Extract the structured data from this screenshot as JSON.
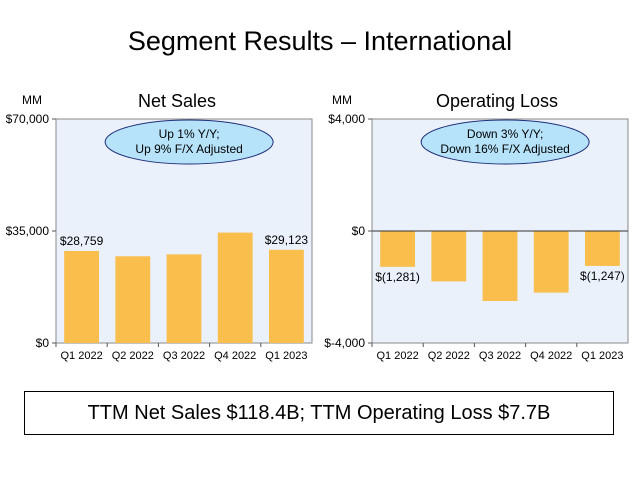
{
  "page": {
    "title": "Segment Results – International",
    "summary": "TTM Net Sales $118.4B; TTM Operating Loss $7.7B"
  },
  "chart_data": [
    {
      "type": "bar",
      "title": "Net Sales",
      "unit_label": "MM",
      "categories": [
        "Q1 2022",
        "Q2 2022",
        "Q3 2022",
        "Q4 2022",
        "Q1 2023"
      ],
      "values": [
        28759,
        27100,
        27700,
        34500,
        29123
      ],
      "data_labels": [
        "$28,759",
        "",
        "",
        "",
        "$29,123"
      ],
      "ylim": [
        0,
        70000
      ],
      "yticks": [
        0,
        35000,
        70000
      ],
      "ytick_labels": [
        "$0",
        "$35,000",
        "$70,000"
      ],
      "annotation": [
        "Up 1% Y/Y;",
        "Up 9% F/X Adjusted"
      ],
      "bar_color": "#F9BE4C",
      "plot_bg": "#EAF1FA",
      "bubble_color": "#B6E3FA"
    },
    {
      "type": "bar",
      "title": "Operating Loss",
      "unit_label": "MM",
      "categories": [
        "Q1 2022",
        "Q2 2022",
        "Q3 2022",
        "Q4 2022",
        "Q1 2023"
      ],
      "values": [
        -1281,
        -1800,
        -2500,
        -2200,
        -1247
      ],
      "data_labels": [
        "$(1,281)",
        "",
        "",
        "",
        "$(1,247)"
      ],
      "ylim": [
        -4000,
        4000
      ],
      "yticks": [
        -4000,
        0,
        4000
      ],
      "ytick_labels": [
        "$-4,000",
        "$0",
        "$4,000"
      ],
      "annotation": [
        "Down 3% Y/Y;",
        "Down 16% F/X Adjusted"
      ],
      "bar_color": "#F9BE4C",
      "plot_bg": "#EAF1FA",
      "bubble_color": "#B6E3FA"
    }
  ]
}
